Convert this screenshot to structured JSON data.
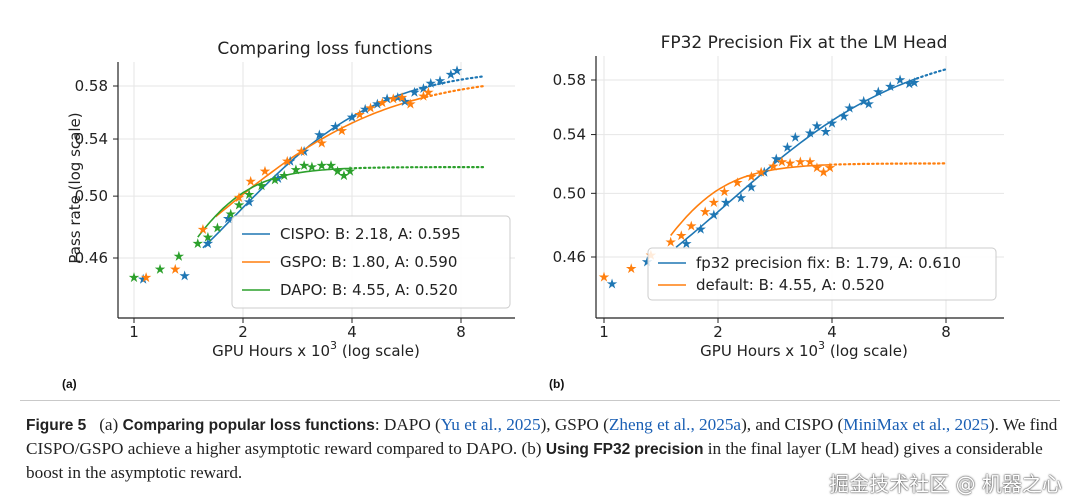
{
  "chart_data": [
    {
      "id": "a",
      "type": "scatter",
      "panel_label": "(a)",
      "title": "Comparing loss functions",
      "xlabel": "GPU Hours x 10^3 (log scale)",
      "xlabel_base": "GPU Hours x 10",
      "xlabel_exp": "3",
      "xlabel_suffix": " (log scale)",
      "ylabel": "Pass rate (log scale)",
      "xscale": "log",
      "yscale": "log",
      "xlim": [
        0.95,
        10.0
      ],
      "ylim": [
        0.435,
        0.605
      ],
      "xticks": [
        1,
        2,
        4,
        8
      ],
      "xtick_labels": [
        "1",
        "2",
        "4",
        "8"
      ],
      "yticks": [
        0.46,
        0.5,
        0.54,
        0.58
      ],
      "ytick_labels": [
        "0.46",
        "0.50",
        "0.54",
        "0.58"
      ],
      "grid": true,
      "legend_position": "lower-right",
      "series": [
        {
          "name": "CISPO",
          "legend": "CISPO: B: 2.18, A: 0.595",
          "color": "#1f77b4",
          "fit": {
            "A": 0.595,
            "B": 2.18,
            "x_start": 1.55,
            "x_solid_end": 6.0,
            "x_dotted_end": 9.2
          },
          "points": [
            [
              1.06,
              0.447
            ],
            [
              1.38,
              0.449
            ],
            [
              1.6,
              0.469
            ],
            [
              1.82,
              0.485
            ],
            [
              2.08,
              0.496
            ],
            [
              2.5,
              0.512
            ],
            [
              2.7,
              0.524
            ],
            [
              2.95,
              0.531
            ],
            [
              3.25,
              0.543
            ],
            [
              3.6,
              0.549
            ],
            [
              4.0,
              0.556
            ],
            [
              4.35,
              0.562
            ],
            [
              4.7,
              0.566
            ],
            [
              5.0,
              0.57
            ],
            [
              5.35,
              0.571
            ],
            [
              5.6,
              0.568
            ],
            [
              5.95,
              0.575
            ],
            [
              6.3,
              0.578
            ],
            [
              6.6,
              0.582
            ],
            [
              7.0,
              0.584
            ],
            [
              7.5,
              0.589
            ],
            [
              7.8,
              0.592
            ]
          ]
        },
        {
          "name": "GSPO",
          "legend": "GSPO: B: 1.80, A: 0.590",
          "color": "#ff7f0e",
          "fit": {
            "A": 0.59,
            "B": 1.8,
            "x_start": 1.68,
            "x_solid_end": 6.4,
            "x_dotted_end": 9.2
          },
          "points": [
            [
              1.08,
              0.448
            ],
            [
              1.3,
              0.453
            ],
            [
              1.55,
              0.478
            ],
            [
              1.95,
              0.499
            ],
            [
              2.1,
              0.51
            ],
            [
              2.3,
              0.517
            ],
            [
              2.65,
              0.524
            ],
            [
              2.9,
              0.531
            ],
            [
              3.3,
              0.537
            ],
            [
              3.75,
              0.546
            ],
            [
              4.2,
              0.558
            ],
            [
              4.5,
              0.563
            ],
            [
              4.85,
              0.567
            ],
            [
              5.2,
              0.57
            ],
            [
              5.5,
              0.571
            ],
            [
              5.8,
              0.566
            ],
            [
              6.3,
              0.572
            ],
            [
              6.5,
              0.575
            ]
          ]
        },
        {
          "name": "DAPO",
          "legend": "DAPO: B: 4.55, A: 0.520",
          "color": "#2ca02c",
          "fit": {
            "A": 0.52,
            "B": 4.55,
            "x_start": 1.5,
            "x_solid_end": 3.95,
            "x_dotted_end": 9.2
          },
          "points": [
            [
              1.0,
              0.448
            ],
            [
              1.18,
              0.453
            ],
            [
              1.33,
              0.461
            ],
            [
              1.5,
              0.469
            ],
            [
              1.6,
              0.473
            ],
            [
              1.7,
              0.479
            ],
            [
              1.85,
              0.488
            ],
            [
              1.95,
              0.494
            ],
            [
              2.08,
              0.501
            ],
            [
              2.25,
              0.507
            ],
            [
              2.45,
              0.511
            ],
            [
              2.6,
              0.514
            ],
            [
              2.8,
              0.518
            ],
            [
              2.95,
              0.521
            ],
            [
              3.1,
              0.52
            ],
            [
              3.3,
              0.521
            ],
            [
              3.5,
              0.521
            ],
            [
              3.65,
              0.517
            ],
            [
              3.8,
              0.514
            ],
            [
              3.95,
              0.517
            ]
          ]
        }
      ]
    },
    {
      "id": "b",
      "type": "scatter",
      "panel_label": "(b)",
      "title": "FP32 Precision Fix at the LM Head",
      "xlabel": "GPU Hours x 10^3 (log scale)",
      "xlabel_base": "GPU Hours x 10",
      "xlabel_exp": "3",
      "xlabel_suffix": " (log scale)",
      "ylabel": "",
      "xscale": "log",
      "yscale": "log",
      "xlim": [
        0.95,
        10.0
      ],
      "ylim": [
        0.435,
        0.605
      ],
      "xticks": [
        1,
        2,
        4,
        8
      ],
      "xtick_labels": [
        "1",
        "2",
        "4",
        "8"
      ],
      "yticks": [
        0.46,
        0.5,
        0.54,
        0.58
      ],
      "ytick_labels": [
        "0.46",
        "0.50",
        "0.54",
        "0.58"
      ],
      "grid": true,
      "legend_position": "lower-right",
      "series": [
        {
          "name": "fp32 precision fix",
          "legend": "fp32 precision fix: B: 1.79, A: 0.610",
          "color": "#1f77b4",
          "fit": {
            "A": 0.61,
            "B": 1.79,
            "x_start": 1.55,
            "x_solid_end": 6.7,
            "x_dotted_end": 8.0
          },
          "points": [
            [
              1.05,
              0.444
            ],
            [
              1.3,
              0.457
            ],
            [
              1.65,
              0.468
            ],
            [
              1.8,
              0.477
            ],
            [
              1.95,
              0.486
            ],
            [
              2.1,
              0.494
            ],
            [
              2.3,
              0.497
            ],
            [
              2.45,
              0.504
            ],
            [
              2.65,
              0.514
            ],
            [
              2.85,
              0.523
            ],
            [
              3.05,
              0.531
            ],
            [
              3.2,
              0.538
            ],
            [
              3.5,
              0.541
            ],
            [
              3.65,
              0.546
            ],
            [
              3.85,
              0.542
            ],
            [
              4.0,
              0.548
            ],
            [
              4.3,
              0.553
            ],
            [
              4.45,
              0.559
            ],
            [
              4.85,
              0.564
            ],
            [
              5.0,
              0.562
            ],
            [
              5.3,
              0.571
            ],
            [
              5.7,
              0.575
            ],
            [
              6.05,
              0.58
            ],
            [
              6.4,
              0.577
            ],
            [
              6.6,
              0.578
            ]
          ]
        },
        {
          "name": "default",
          "legend": "default: B: 4.55, A: 0.520",
          "color": "#ff7f0e",
          "fit": {
            "A": 0.52,
            "B": 4.55,
            "x_start": 1.5,
            "x_solid_end": 3.95,
            "x_dotted_end": 8.0
          },
          "points": [
            [
              1.0,
              0.448
            ],
            [
              1.18,
              0.453
            ],
            [
              1.33,
              0.461
            ],
            [
              1.5,
              0.469
            ],
            [
              1.6,
              0.473
            ],
            [
              1.7,
              0.479
            ],
            [
              1.85,
              0.488
            ],
            [
              1.95,
              0.494
            ],
            [
              2.08,
              0.501
            ],
            [
              2.25,
              0.507
            ],
            [
              2.45,
              0.511
            ],
            [
              2.6,
              0.514
            ],
            [
              2.8,
              0.518
            ],
            [
              2.95,
              0.521
            ],
            [
              3.1,
              0.52
            ],
            [
              3.3,
              0.521
            ],
            [
              3.5,
              0.521
            ],
            [
              3.65,
              0.517
            ],
            [
              3.8,
              0.514
            ],
            [
              3.95,
              0.517
            ]
          ]
        }
      ]
    }
  ],
  "caption": {
    "figure_label": "Figure 5",
    "part_a_marker": "(a)",
    "part_a_heading": "Comparing popular loss functions",
    "colon": ":",
    "dapo": " DAPO (",
    "cite_yu": "Yu et al., 2025",
    "gspo": "), GSPO (",
    "cite_zheng": "Zheng et al., 2025a",
    "cispo": "), and CISPO (",
    "cite_minimax": "MiniMax et al., 2025",
    "finding": "). We find CISPO/GSPO achieve a higher asymptotic reward compared to DAPO. (b) ",
    "part_b_heading_1": "Using",
    "part_b_heading_2": "FP32 precision",
    "part_b_rest": " in the final layer (LM head) gives a considerable boost in the asymptotic reward."
  },
  "watermark": "掘金技术社区 @ 机器之心"
}
